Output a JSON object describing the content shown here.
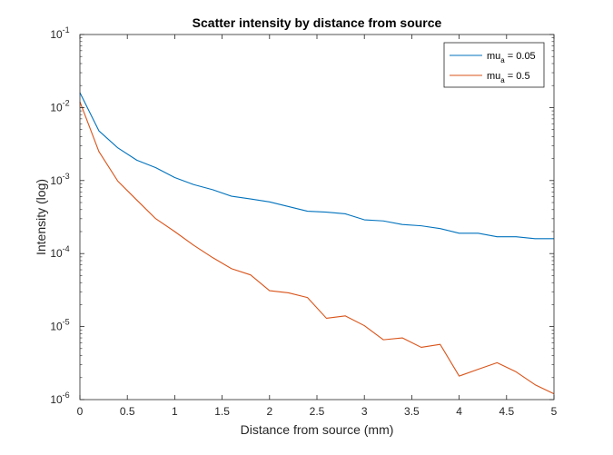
{
  "chart_data": {
    "type": "line",
    "title": "Scatter intensity by distance from source",
    "xlabel": "Distance from source (mm)",
    "ylabel": "Intensity (log)",
    "xlim": [
      0,
      5
    ],
    "ylim": [
      1e-06,
      0.1
    ],
    "yscale": "log",
    "grid": false,
    "legend_location": "top-right",
    "x_ticks": [
      "0",
      "0.5",
      "1",
      "1.5",
      "2",
      "2.5",
      "3",
      "3.5",
      "4",
      "4.5",
      "5"
    ],
    "y_ticks": [
      {
        "base": "10",
        "exp": "-6"
      },
      {
        "base": "10",
        "exp": "-5"
      },
      {
        "base": "10",
        "exp": "-4"
      },
      {
        "base": "10",
        "exp": "-3"
      },
      {
        "base": "10",
        "exp": "-2"
      },
      {
        "base": "10",
        "exp": "-1"
      }
    ],
    "x": [
      0,
      0.2,
      0.4,
      0.6,
      0.8,
      1.0,
      1.2,
      1.4,
      1.6,
      1.8,
      2.0,
      2.2,
      2.4,
      2.6,
      2.8,
      3.0,
      3.2,
      3.4,
      3.6,
      3.8,
      4.0,
      4.2,
      4.4,
      4.6,
      4.8,
      5.0
    ],
    "series": [
      {
        "name": "mu_a = 0.05",
        "legend_main": "mu",
        "legend_sub": "a",
        "legend_rest": " = 0.05",
        "color": "#0072BD",
        "values": [
          0.016,
          0.0048,
          0.0028,
          0.0019,
          0.0015,
          0.0011,
          0.00088,
          0.00075,
          0.00061,
          0.00056,
          0.00051,
          0.00044,
          0.00038,
          0.00037,
          0.00035,
          0.00029,
          0.00028,
          0.00025,
          0.00024,
          0.00022,
          0.00019,
          0.00019,
          0.00017,
          0.00017,
          0.00016,
          0.00016
        ]
      },
      {
        "name": "mu_a = 0.5",
        "legend_main": "mu",
        "legend_sub": "a",
        "legend_rest": " = 0.5",
        "color": "#D95319",
        "values": [
          0.012,
          0.0025,
          0.00098,
          0.00054,
          0.0003,
          0.0002,
          0.00013,
          8.8e-05,
          6.2e-05,
          5.1e-05,
          3.1e-05,
          2.9e-05,
          2.5e-05,
          1.3e-05,
          1.4e-05,
          1.03e-05,
          6.6e-06,
          7e-06,
          5.2e-06,
          5.7e-06,
          2.1e-06,
          2.6e-06,
          3.2e-06,
          2.4e-06,
          1.6e-06,
          1.2e-06
        ]
      }
    ]
  }
}
